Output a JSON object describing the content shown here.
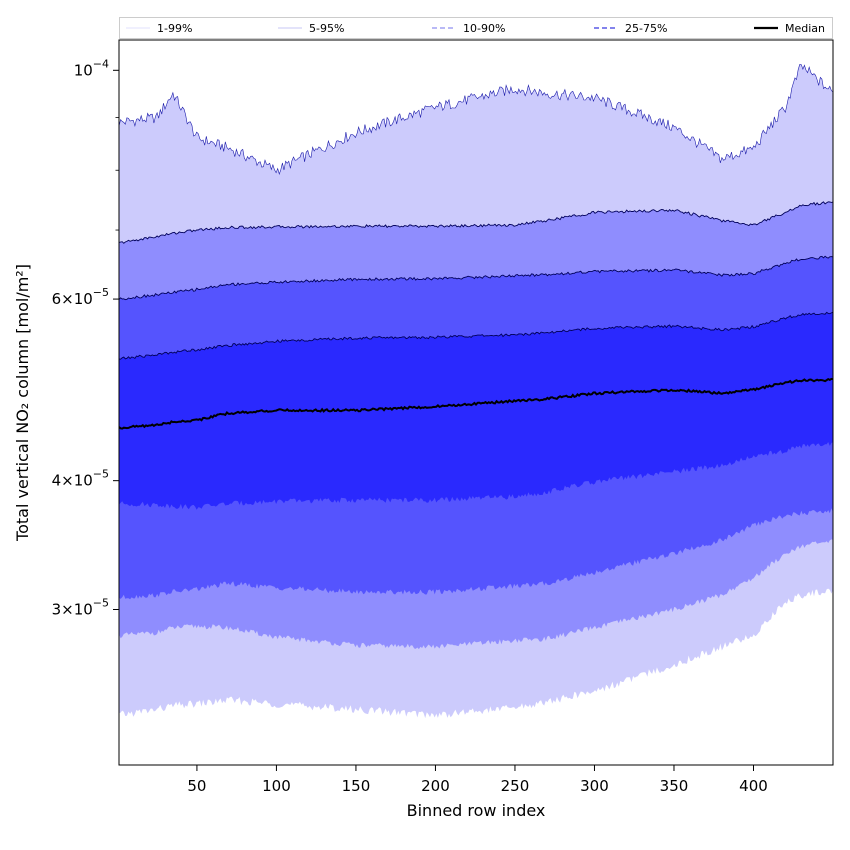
{
  "chart_data": {
    "type": "area",
    "xlabel": "Binned row index",
    "ylabel": "Total vertical NO₂ column [mol/m²]",
    "xlim": [
      1,
      450
    ],
    "ylim": [
      2.12e-05,
      0.000107
    ],
    "yscale": "log",
    "x_ticks": [
      50,
      100,
      150,
      200,
      250,
      300,
      350,
      400
    ],
    "y_ticks": [
      {
        "value": 3e-05,
        "mant": "3",
        "exp": "−5"
      },
      {
        "value": 4e-05,
        "mant": "4",
        "exp": "−5"
      },
      {
        "value": 6e-05,
        "mant": "6",
        "exp": "−5"
      },
      {
        "value": 0.0001,
        "mant": "",
        "exp": "−4"
      }
    ],
    "y_minor_ticks": [
      7e-05,
      8e-05,
      9e-05
    ],
    "x": [
      1,
      25,
      35,
      50,
      70,
      100,
      150,
      200,
      250,
      270,
      300,
      350,
      380,
      400,
      420,
      430,
      450
    ],
    "bands": [
      {
        "name": "1-99%",
        "color": "#cccbfc",
        "line": "#8f8ff0",
        "lower": [
          2.37e-05,
          2.4e-05,
          2.42e-05,
          2.43e-05,
          2.45e-05,
          2.43e-05,
          2.4e-05,
          2.37e-05,
          2.41e-05,
          2.44e-05,
          2.5e-05,
          2.65e-05,
          2.76e-05,
          2.83e-05,
          3.05e-05,
          3.1e-05,
          3.13e-05
        ],
        "upper": [
          8.9e-05,
          9e-05,
          9.5e-05,
          8.6e-05,
          8.4e-05,
          8e-05,
          8.7e-05,
          9.2e-05,
          9.6e-05,
          9.5e-05,
          9.4e-05,
          8.8e-05,
          8.2e-05,
          8.4e-05,
          9.2e-05,
          0.000101,
          9.5e-05
        ]
      },
      {
        "name": "5-95%",
        "color": "#8f8dfe",
        "line": "#00006b",
        "lower": [
          2.83e-05,
          2.85e-05,
          2.88e-05,
          2.89e-05,
          2.88e-05,
          2.82e-05,
          2.77e-05,
          2.76e-05,
          2.8e-05,
          2.81e-05,
          2.88e-05,
          3e-05,
          3.1e-05,
          3.22e-05,
          3.4e-05,
          3.46e-05,
          3.49e-05
        ]
      },
      {
        "name": "10-90%",
        "color": "#5554fe",
        "line": "#00006b",
        "lower": [
          3.08e-05,
          3.1e-05,
          3.12e-05,
          3.14e-05,
          3.18e-05,
          3.15e-05,
          3.12e-05,
          3.12e-05,
          3.16e-05,
          3.18e-05,
          3.26e-05,
          3.4e-05,
          3.5e-05,
          3.62e-05,
          3.7e-05,
          3.72e-05,
          3.74e-05
        ]
      },
      {
        "name": "25-75%",
        "color": "#2a29fe",
        "line": "#00006b",
        "lower": [
          3.8e-05,
          3.79e-05,
          3.78e-05,
          3.77e-05,
          3.8e-05,
          3.82e-05,
          3.83e-05,
          3.83e-05,
          3.86e-05,
          3.9e-05,
          3.99e-05,
          4.08e-05,
          4.14e-05,
          4.22e-05,
          4.28e-05,
          4.32e-05,
          4.34e-05
        ]
      }
    ],
    "upper_lines": [
      {
        "name": "5-95%",
        "values": [
          6.8e-05,
          6.9e-05,
          6.95e-05,
          7e-05,
          7.04e-05,
          7.05e-05,
          7.06e-05,
          7.06e-05,
          7.08e-05,
          7.15e-05,
          7.28e-05,
          7.32e-05,
          7.15e-05,
          7.08e-05,
          7.28e-05,
          7.4e-05,
          7.45e-05
        ]
      },
      {
        "name": "10-90%",
        "values": [
          6e-05,
          6.06e-05,
          6.09e-05,
          6.13e-05,
          6.2e-05,
          6.23e-05,
          6.27e-05,
          6.28e-05,
          6.32e-05,
          6.34e-05,
          6.38e-05,
          6.4e-05,
          6.33e-05,
          6.35e-05,
          6.5e-05,
          6.56e-05,
          6.6e-05
        ]
      },
      {
        "name": "25-75%",
        "values": [
          5.25e-05,
          5.3e-05,
          5.33e-05,
          5.36e-05,
          5.41e-05,
          5.46e-05,
          5.5e-05,
          5.51e-05,
          5.54e-05,
          5.57e-05,
          5.62e-05,
          5.65e-05,
          5.6e-05,
          5.64e-05,
          5.75e-05,
          5.8e-05,
          5.82e-05
        ]
      }
    ],
    "median": {
      "name": "Median",
      "color": "#000000",
      "values": [
        4.5e-05,
        4.53e-05,
        4.56e-05,
        4.58e-05,
        4.65e-05,
        4.68e-05,
        4.68e-05,
        4.72e-05,
        4.78e-05,
        4.8e-05,
        4.86e-05,
        4.9e-05,
        4.86e-05,
        4.9e-05,
        4.98e-05,
        5e-05,
        5.01e-05
      ]
    },
    "legend": [
      {
        "label": "1-99%",
        "style": "solid",
        "color": "#d9d9fb",
        "width": 0.8
      },
      {
        "label": "5-95%",
        "style": "solid",
        "color": "#b4b4f0",
        "width": 0.8
      },
      {
        "label": "10-90%",
        "style": "dashed",
        "color": "#8f8ff0",
        "width": 1.2
      },
      {
        "label": "25-75%",
        "style": "dashed",
        "color": "#5a5ae6",
        "width": 1.4
      },
      {
        "label": "Median",
        "style": "solid",
        "color": "#000000",
        "width": 2.2
      }
    ],
    "legend_position": "top"
  }
}
